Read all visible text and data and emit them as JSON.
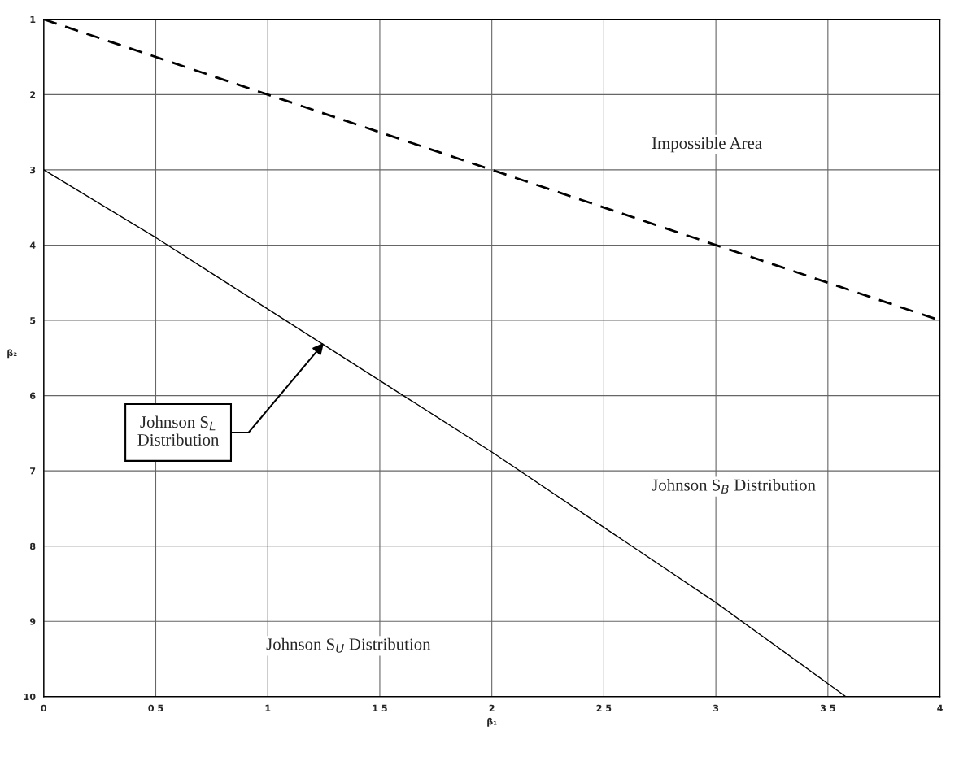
{
  "chart_data": {
    "type": "line",
    "xlabel": "β₁",
    "ylabel": "β₂",
    "xlim": [
      0,
      4
    ],
    "ylim": [
      10,
      1
    ],
    "xticks": [
      0,
      {
        "value": 0.5,
        "label": "0 5"
      },
      1,
      {
        "value": 1.5,
        "label": "1 5"
      },
      2,
      {
        "value": 2.5,
        "label": "2 5"
      },
      3,
      {
        "value": 3.5,
        "label": "3 5"
      },
      4
    ],
    "yticks": [
      1,
      2,
      3,
      4,
      5,
      6,
      7,
      8,
      9,
      10
    ],
    "grid": true,
    "series": [
      {
        "color": "#000000",
        "line_style": "dashed",
        "x": [
          0,
          4
        ],
        "values": [
          1,
          5
        ]
      },
      {
        "color": "#000000",
        "line_style": "solid",
        "x": [
          0,
          0.5,
          1,
          1.5,
          2,
          2.5,
          3,
          3.58
        ],
        "values": [
          3,
          3.9,
          4.85,
          5.8,
          6.75,
          7.75,
          8.75,
          10
        ]
      }
    ],
    "annotations": [
      "Impossible Area",
      "Johnson S$_{B}$ Distribution",
      "Johnson S$_{U}$ Distribution",
      {
        "text": "Johnson S$_{L}$\nDistribution",
        "x": 1.25,
        "y": 5.3
      }
    ]
  }
}
